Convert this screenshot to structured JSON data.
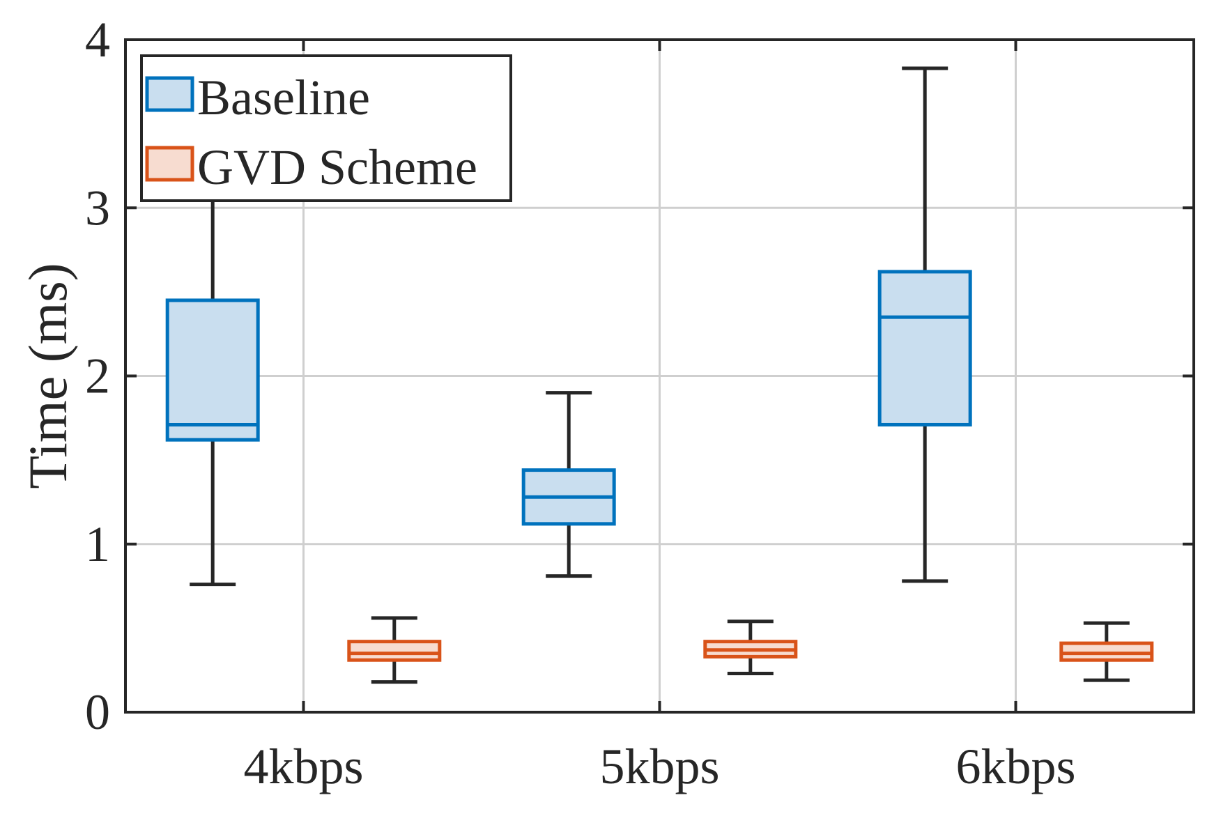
{
  "chart_data": {
    "type": "boxplot",
    "title": "",
    "xlabel": "",
    "ylabel": "Time (ms)",
    "ylim": [
      0,
      4
    ],
    "yticks": [
      0,
      1,
      2,
      3,
      4
    ],
    "ytick_labels": [
      "0",
      "1",
      "2",
      "3",
      "4"
    ],
    "grid": true,
    "legend_position": "top-left",
    "categories": [
      "4kbps",
      "5kbps",
      "6kbps"
    ],
    "series": [
      {
        "name": "Baseline",
        "edge_color": "#0072BD",
        "fill_color": "#C9DEEF",
        "boxes": [
          {
            "category": "4kbps",
            "whisker_low": 0.76,
            "q1": 1.62,
            "median": 1.71,
            "q3": 2.45,
            "whisker_high": 3.05
          },
          {
            "category": "5kbps",
            "whisker_low": 0.81,
            "q1": 1.12,
            "median": 1.28,
            "q3": 1.44,
            "whisker_high": 1.9
          },
          {
            "category": "6kbps",
            "whisker_low": 0.78,
            "q1": 1.71,
            "median": 2.35,
            "q3": 2.62,
            "whisker_high": 3.83
          }
        ]
      },
      {
        "name": "GVD Scheme",
        "edge_color": "#D95319",
        "fill_color": "#F7DCD0",
        "boxes": [
          {
            "category": "4kbps",
            "whisker_low": 0.18,
            "q1": 0.31,
            "median": 0.35,
            "q3": 0.42,
            "whisker_high": 0.56
          },
          {
            "category": "5kbps",
            "whisker_low": 0.23,
            "q1": 0.33,
            "median": 0.37,
            "q3": 0.42,
            "whisker_high": 0.54
          },
          {
            "category": "6kbps",
            "whisker_low": 0.19,
            "q1": 0.31,
            "median": 0.35,
            "q3": 0.41,
            "whisker_high": 0.53
          }
        ]
      }
    ]
  }
}
